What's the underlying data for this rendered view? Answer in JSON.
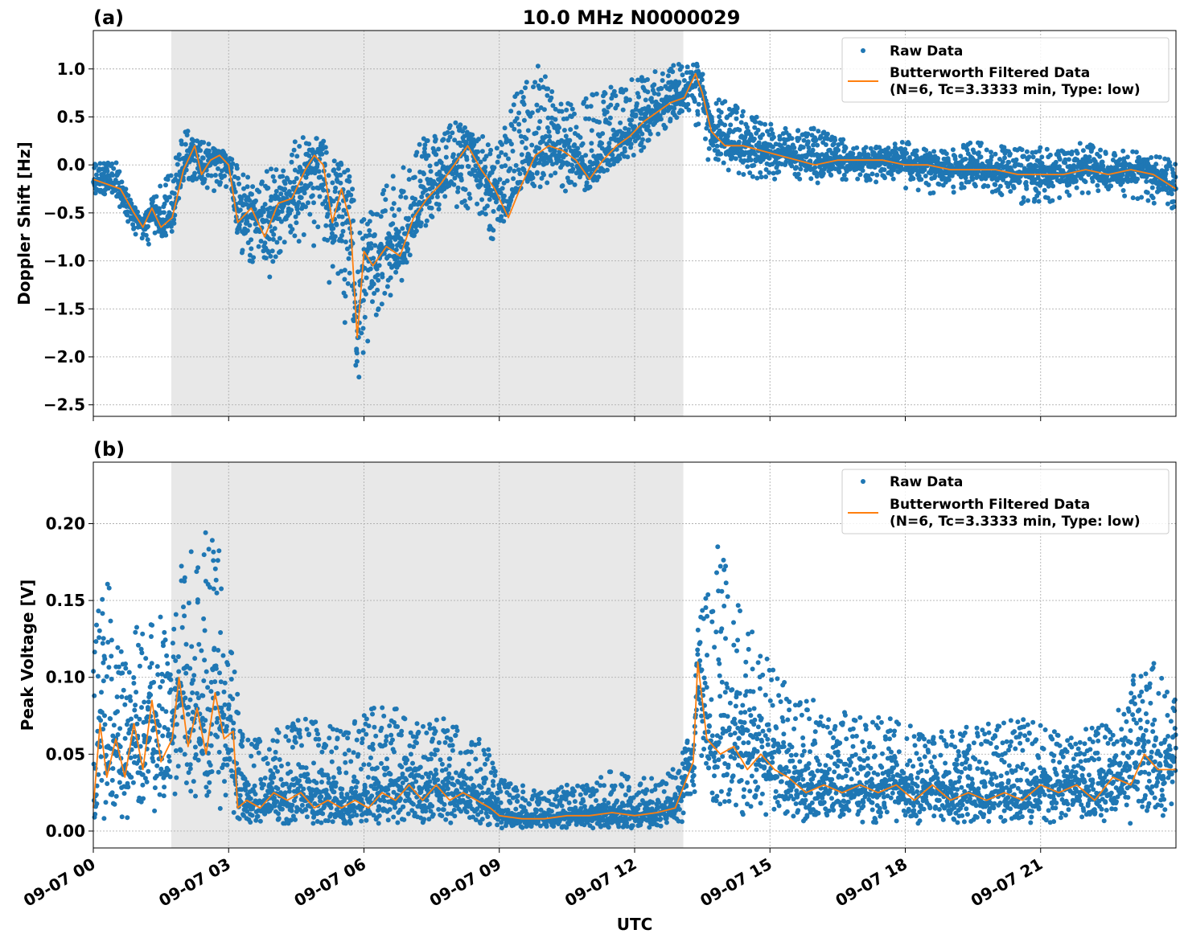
{
  "title": "10.0 MHz N0000029",
  "xlabel": "UTC",
  "x_tick_labels": [
    "09-07 00",
    "09-07 03",
    "09-07 06",
    "09-07 09",
    "09-07 12",
    "09-07 15",
    "09-07 18",
    "09-07 21"
  ],
  "colors": {
    "raw": "#1f77b4",
    "filtered": "#ff7f0e",
    "night_shade": "#e8e8e8",
    "grid": "#b0b0b0"
  },
  "chart_data": [
    {
      "type": "scatter",
      "panel_label": "(a)",
      "title": "10.0 MHz N0000029",
      "xlabel": "",
      "ylabel": "Doppler Shift [Hz]",
      "x_unit": "hours UTC on 09-07",
      "xlim": [
        0,
        24
      ],
      "ylim": [
        -2.62,
        1.4
      ],
      "y_ticks": [
        -2.5,
        -2.0,
        -1.5,
        -1.0,
        -0.5,
        0.0,
        0.5,
        1.0
      ],
      "y_tick_labels": [
        "−2.5",
        "−2.0",
        "−1.5",
        "−1.0",
        "−0.5",
        "0.0",
        "0.5",
        "1.0"
      ],
      "shaded_span": [
        1.73,
        13.08
      ],
      "grid": true,
      "legend_position": "top-right",
      "series": [
        {
          "name": "Raw Data",
          "style": "dots",
          "color": "#1f77b4",
          "envelope": {
            "x": [
              0.0,
              0.5,
              0.8,
              1.1,
              1.4,
              1.75,
              2.0,
              2.3,
              2.6,
              2.9,
              3.1,
              3.3,
              3.6,
              3.9,
              4.2,
              4.5,
              4.8,
              5.1,
              5.4,
              5.7,
              5.85,
              6.0,
              6.3,
              6.6,
              6.9,
              7.2,
              7.5,
              7.8,
              8.1,
              8.4,
              8.7,
              9.0,
              9.3,
              9.6,
              9.9,
              10.2,
              10.5,
              10.8,
              11.1,
              11.4,
              11.7,
              12.0,
              12.3,
              12.6,
              12.9,
              13.2,
              13.45,
              13.7,
              14.0,
              14.3,
              14.6,
              15.0,
              15.5,
              16.0,
              16.5,
              17.0,
              17.5,
              18.0,
              18.5,
              19.0,
              19.5,
              20.0,
              20.5,
              21.0,
              21.5,
              22.0,
              22.5,
              23.0,
              23.5,
              24.0
            ],
            "low": [
              -0.3,
              -0.35,
              -0.65,
              -0.9,
              -0.75,
              -0.72,
              -0.2,
              -0.15,
              -0.35,
              -0.2,
              -0.35,
              -1.2,
              -0.95,
              -1.3,
              -0.85,
              -0.8,
              -0.9,
              -1.45,
              -1.2,
              -2.0,
              -2.4,
              -2.4,
              -1.6,
              -1.4,
              -1.15,
              -0.8,
              -0.6,
              -0.35,
              -0.45,
              -0.5,
              -0.8,
              -0.75,
              -0.3,
              -0.2,
              -0.25,
              -0.25,
              -0.35,
              -0.3,
              -0.2,
              -0.05,
              0.05,
              0.05,
              0.2,
              0.3,
              0.4,
              0.55,
              0.3,
              -0.05,
              -0.05,
              -0.1,
              -0.15,
              -0.15,
              -0.15,
              -0.2,
              -0.2,
              -0.15,
              -0.2,
              -0.25,
              -0.3,
              -0.3,
              -0.3,
              -0.3,
              -0.4,
              -0.45,
              -0.35,
              -0.3,
              -0.3,
              -0.35,
              -0.4,
              -0.5
            ],
            "high": [
              0.05,
              0.05,
              -0.35,
              -0.55,
              -0.25,
              -0.05,
              0.4,
              0.25,
              0.25,
              0.15,
              0.05,
              -0.05,
              -0.15,
              0.05,
              -0.05,
              0.3,
              0.3,
              0.25,
              0.05,
              -0.05,
              -0.6,
              -0.5,
              -0.3,
              -0.05,
              0.0,
              0.25,
              0.35,
              0.45,
              0.45,
              0.35,
              0.3,
              0.2,
              0.7,
              0.95,
              1.05,
              0.75,
              0.65,
              0.65,
              0.75,
              0.85,
              0.85,
              0.9,
              0.95,
              1.0,
              1.05,
              1.05,
              1.05,
              0.65,
              0.7,
              0.6,
              0.55,
              0.45,
              0.35,
              0.4,
              0.3,
              0.2,
              0.2,
              0.25,
              0.15,
              0.15,
              0.25,
              0.2,
              0.2,
              0.2,
              0.15,
              0.25,
              0.15,
              0.15,
              0.1,
              0.05
            ]
          }
        },
        {
          "name": "Butterworth Filtered Data\n(N=6, Tc=3.3333 min, Type: low)",
          "style": "line",
          "color": "#ff7f0e",
          "x": [
            0.0,
            0.3,
            0.6,
            0.9,
            1.1,
            1.3,
            1.5,
            1.75,
            2.0,
            2.25,
            2.4,
            2.6,
            2.8,
            3.0,
            3.2,
            3.5,
            3.8,
            4.1,
            4.4,
            4.7,
            4.9,
            5.1,
            5.3,
            5.5,
            5.7,
            5.85,
            6.0,
            6.2,
            6.5,
            6.8,
            7.1,
            7.4,
            7.7,
            8.0,
            8.3,
            8.6,
            8.9,
            9.2,
            9.5,
            9.8,
            10.1,
            10.4,
            10.7,
            11.0,
            11.3,
            11.6,
            11.9,
            12.2,
            12.5,
            12.8,
            13.1,
            13.35,
            13.5,
            13.7,
            14.0,
            14.4,
            14.8,
            15.2,
            15.6,
            16.0,
            16.5,
            17.0,
            17.5,
            18.0,
            18.5,
            19.0,
            19.5,
            20.0,
            20.5,
            21.0,
            21.5,
            22.0,
            22.5,
            23.0,
            23.5,
            24.0
          ],
          "y": [
            -0.15,
            -0.2,
            -0.25,
            -0.5,
            -0.65,
            -0.45,
            -0.65,
            -0.55,
            -0.05,
            0.2,
            -0.1,
            0.05,
            0.1,
            0.0,
            -0.6,
            -0.45,
            -0.75,
            -0.4,
            -0.35,
            -0.05,
            0.1,
            0.0,
            -0.6,
            -0.25,
            -0.6,
            -1.8,
            -0.9,
            -1.05,
            -0.85,
            -0.95,
            -0.55,
            -0.35,
            -0.2,
            0.0,
            0.2,
            -0.05,
            -0.25,
            -0.55,
            -0.2,
            0.1,
            0.2,
            0.15,
            0.05,
            -0.15,
            0.05,
            0.2,
            0.3,
            0.45,
            0.55,
            0.65,
            0.7,
            0.95,
            0.75,
            0.35,
            0.2,
            0.2,
            0.15,
            0.1,
            0.05,
            0.0,
            0.05,
            0.05,
            0.05,
            0.0,
            0.0,
            -0.05,
            -0.05,
            -0.05,
            -0.1,
            -0.1,
            -0.1,
            -0.05,
            -0.1,
            -0.05,
            -0.1,
            -0.25
          ]
        }
      ]
    },
    {
      "type": "scatter",
      "panel_label": "(b)",
      "title": "",
      "xlabel": "UTC",
      "ylabel": "Peak Voltage [V]",
      "x_unit": "hours UTC on 09-07",
      "xlim": [
        0,
        24
      ],
      "ylim": [
        -0.011,
        0.24
      ],
      "y_ticks": [
        0.0,
        0.05,
        0.1,
        0.15,
        0.2
      ],
      "y_tick_labels": [
        "0.00",
        "0.05",
        "0.10",
        "0.15",
        "0.20"
      ],
      "shaded_span": [
        1.73,
        13.08
      ],
      "grid": true,
      "legend_position": "top-right",
      "series": [
        {
          "name": "Raw Data",
          "style": "dots",
          "color": "#1f77b4",
          "envelope": {
            "x": [
              0.0,
              0.3,
              0.6,
              0.9,
              1.2,
              1.5,
              1.75,
              2.0,
              2.3,
              2.6,
              2.9,
              3.15,
              3.35,
              3.7,
              4.2,
              4.7,
              5.2,
              5.7,
              6.2,
              6.7,
              7.2,
              7.7,
              8.2,
              8.7,
              8.95,
              9.5,
              10.0,
              10.5,
              11.0,
              11.5,
              12.0,
              12.5,
              13.0,
              13.3,
              13.45,
              13.8,
              14.2,
              14.6,
              15.0,
              15.5,
              16.0,
              16.5,
              17.0,
              17.5,
              18.0,
              18.5,
              19.0,
              19.5,
              20.0,
              20.5,
              21.0,
              21.5,
              22.0,
              22.5,
              23.0,
              23.5,
              24.0
            ],
            "low": [
              0.005,
              0.005,
              0.005,
              0.01,
              0.01,
              0.01,
              0.015,
              0.01,
              0.015,
              0.015,
              0.01,
              0.01,
              0.005,
              0.005,
              0.005,
              0.005,
              0.005,
              0.005,
              0.005,
              0.005,
              0.005,
              0.005,
              0.005,
              0.003,
              0.002,
              0.002,
              0.002,
              0.002,
              0.002,
              0.002,
              0.002,
              0.002,
              0.005,
              0.01,
              0.02,
              0.02,
              0.01,
              0.01,
              0.01,
              0.005,
              0.005,
              0.005,
              0.005,
              0.005,
              0.005,
              0.005,
              0.005,
              0.005,
              0.005,
              0.005,
              0.005,
              0.005,
              0.005,
              0.005,
              0.005,
              0.005,
              0.005
            ],
            "high": [
              0.13,
              0.17,
              0.12,
              0.13,
              0.15,
              0.14,
              0.12,
              0.2,
              0.17,
              0.22,
              0.16,
              0.1,
              0.06,
              0.065,
              0.07,
              0.075,
              0.07,
              0.07,
              0.085,
              0.08,
              0.07,
              0.075,
              0.065,
              0.06,
              0.035,
              0.03,
              0.025,
              0.03,
              0.03,
              0.04,
              0.035,
              0.035,
              0.045,
              0.085,
              0.15,
              0.19,
              0.16,
              0.13,
              0.11,
              0.09,
              0.085,
              0.08,
              0.075,
              0.075,
              0.07,
              0.065,
              0.065,
              0.07,
              0.07,
              0.075,
              0.07,
              0.065,
              0.07,
              0.07,
              0.1,
              0.11,
              0.085
            ]
          }
        },
        {
          "name": "Butterworth Filtered Data\n(N=6, Tc=3.3333 min, Type: low)",
          "style": "line",
          "color": "#ff7f0e",
          "x": [
            0.0,
            0.15,
            0.3,
            0.5,
            0.7,
            0.9,
            1.1,
            1.3,
            1.5,
            1.75,
            1.9,
            2.1,
            2.3,
            2.5,
            2.7,
            2.9,
            3.1,
            3.2,
            3.4,
            3.7,
            4.0,
            4.3,
            4.6,
            4.9,
            5.2,
            5.5,
            5.8,
            6.1,
            6.4,
            6.7,
            7.0,
            7.3,
            7.6,
            7.9,
            8.2,
            8.5,
            8.8,
            9.0,
            9.5,
            10.0,
            10.5,
            11.0,
            11.5,
            12.0,
            12.5,
            12.9,
            13.1,
            13.3,
            13.4,
            13.6,
            13.9,
            14.2,
            14.5,
            14.8,
            15.1,
            15.4,
            15.8,
            16.2,
            16.6,
            17.0,
            17.4,
            17.8,
            18.2,
            18.6,
            19.0,
            19.4,
            19.8,
            20.2,
            20.6,
            21.0,
            21.4,
            21.8,
            22.2,
            22.6,
            23.0,
            23.3,
            23.6,
            24.0
          ],
          "y": [
            0.015,
            0.07,
            0.035,
            0.06,
            0.035,
            0.07,
            0.04,
            0.085,
            0.045,
            0.06,
            0.1,
            0.055,
            0.08,
            0.05,
            0.09,
            0.06,
            0.065,
            0.015,
            0.02,
            0.015,
            0.025,
            0.02,
            0.025,
            0.015,
            0.02,
            0.015,
            0.02,
            0.015,
            0.025,
            0.02,
            0.03,
            0.02,
            0.03,
            0.02,
            0.025,
            0.02,
            0.015,
            0.01,
            0.008,
            0.008,
            0.01,
            0.01,
            0.012,
            0.01,
            0.012,
            0.015,
            0.03,
            0.045,
            0.11,
            0.06,
            0.05,
            0.055,
            0.04,
            0.05,
            0.04,
            0.035,
            0.025,
            0.03,
            0.025,
            0.03,
            0.025,
            0.03,
            0.02,
            0.03,
            0.02,
            0.025,
            0.02,
            0.025,
            0.02,
            0.03,
            0.025,
            0.03,
            0.02,
            0.035,
            0.03,
            0.05,
            0.04,
            0.04
          ]
        }
      ]
    }
  ]
}
